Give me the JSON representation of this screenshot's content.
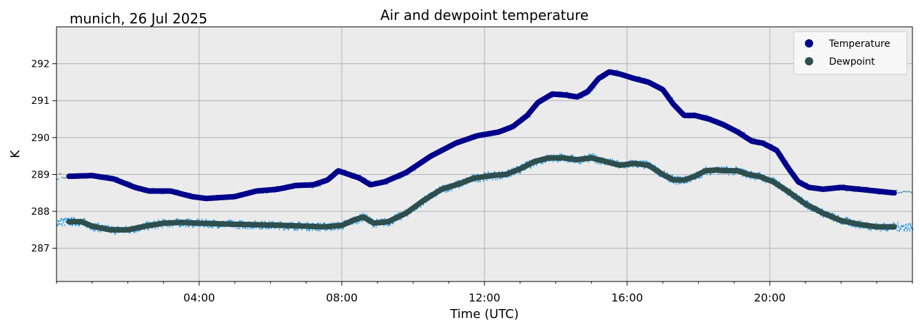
{
  "chart_data": {
    "type": "scatter",
    "title": "Air and dewpoint temperature",
    "subtitle": "munich, 26 Jul 2025",
    "xlabel": "Time (UTC)",
    "ylabel": "K",
    "xlim_hours": [
      0,
      24
    ],
    "ylim": [
      286.1,
      293.0
    ],
    "grid": true,
    "legend_position": "top-right",
    "x_ticks": [
      {
        "hour": 4,
        "label": "04:00"
      },
      {
        "hour": 8,
        "label": "08:00"
      },
      {
        "hour": 12,
        "label": "12:00"
      },
      {
        "hour": 16,
        "label": "16:00"
      },
      {
        "hour": 20,
        "label": "20:00"
      }
    ],
    "y_ticks": [
      {
        "value": 287,
        "label": "287"
      },
      {
        "value": 288,
        "label": "288"
      },
      {
        "value": 289,
        "label": "289"
      },
      {
        "value": 290,
        "label": "290"
      },
      {
        "value": 291,
        "label": "291"
      },
      {
        "value": 292,
        "label": "292"
      }
    ],
    "series": [
      {
        "name": "Temperature",
        "color": "#00008b",
        "raw_color": "#6fa8a6",
        "x": [
          0.35,
          1.0,
          1.6,
          2.2,
          2.6,
          3.2,
          3.8,
          4.2,
          5.0,
          5.6,
          6.2,
          6.7,
          7.2,
          7.6,
          7.9,
          8.2,
          8.5,
          8.8,
          9.2,
          9.8,
          10.5,
          11.2,
          11.8,
          12.4,
          12.8,
          13.2,
          13.5,
          13.9,
          14.3,
          14.6,
          14.9,
          15.2,
          15.5,
          15.8,
          16.2,
          16.6,
          17.0,
          17.3,
          17.6,
          17.9,
          18.3,
          18.7,
          19.1,
          19.5,
          19.8,
          20.2,
          20.5,
          20.8,
          21.1,
          21.5,
          22.0,
          22.5,
          23.0,
          23.5
        ],
        "values": [
          288.95,
          288.97,
          288.88,
          288.65,
          288.55,
          288.55,
          288.4,
          288.35,
          288.4,
          288.55,
          288.6,
          288.7,
          288.72,
          288.85,
          289.1,
          289.0,
          288.9,
          288.72,
          288.8,
          289.05,
          289.5,
          289.85,
          290.05,
          290.15,
          290.3,
          290.6,
          290.95,
          291.18,
          291.15,
          291.1,
          291.25,
          291.6,
          291.78,
          291.72,
          291.6,
          291.5,
          291.3,
          290.9,
          290.6,
          290.6,
          290.5,
          290.35,
          290.15,
          289.9,
          289.85,
          289.65,
          289.2,
          288.8,
          288.65,
          288.6,
          288.65,
          288.6,
          288.55,
          288.5
        ]
      },
      {
        "name": "Dewpoint",
        "color": "#2f4f4f",
        "raw_color": "#1e9be8",
        "x": [
          0.35,
          0.7,
          1.0,
          1.5,
          2.0,
          2.5,
          3.0,
          3.5,
          4.0,
          5.0,
          6.0,
          7.0,
          7.5,
          8.0,
          8.3,
          8.6,
          8.9,
          9.3,
          9.8,
          10.3,
          10.8,
          11.3,
          11.7,
          12.2,
          12.6,
          13.0,
          13.4,
          13.8,
          14.2,
          14.6,
          15.0,
          15.4,
          15.8,
          16.2,
          16.6,
          17.0,
          17.3,
          17.6,
          17.9,
          18.2,
          18.5,
          18.8,
          19.1,
          19.4,
          19.7,
          20.1,
          20.5,
          21.0,
          21.5,
          22.0,
          22.5,
          23.0,
          23.5
        ],
        "values": [
          287.72,
          287.72,
          287.6,
          287.5,
          287.5,
          287.6,
          287.68,
          287.7,
          287.68,
          287.65,
          287.63,
          287.6,
          287.58,
          287.62,
          287.75,
          287.85,
          287.68,
          287.72,
          287.95,
          288.3,
          288.6,
          288.75,
          288.9,
          288.97,
          289.0,
          289.15,
          289.35,
          289.45,
          289.45,
          289.4,
          289.45,
          289.35,
          289.25,
          289.3,
          289.25,
          289.0,
          288.85,
          288.85,
          288.95,
          289.1,
          289.12,
          289.1,
          289.1,
          289.0,
          288.95,
          288.8,
          288.55,
          288.2,
          287.95,
          287.75,
          287.65,
          287.58,
          287.58
        ]
      }
    ]
  }
}
